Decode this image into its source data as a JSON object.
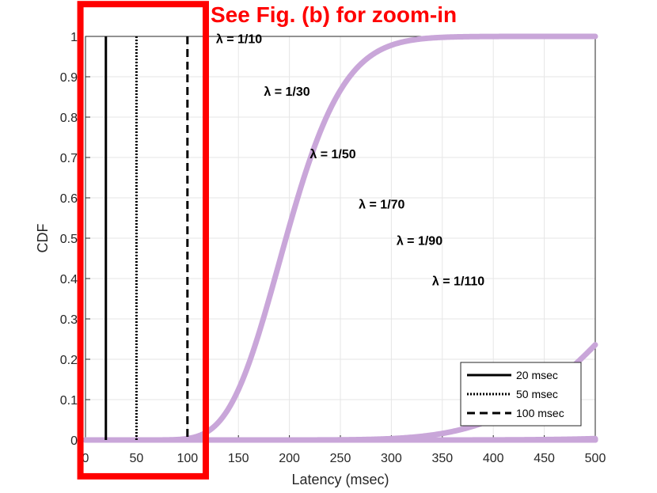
{
  "chart_data": {
    "type": "line",
    "title": "",
    "xlabel": "Latency (msec)",
    "ylabel": "CDF",
    "xlim": [
      0,
      500
    ],
    "ylim": [
      0,
      1
    ],
    "xticks": [
      0,
      50,
      100,
      150,
      200,
      250,
      300,
      350,
      400,
      450,
      500
    ],
    "yticks": [
      0,
      0.1,
      0.2,
      0.3,
      0.4,
      0.5,
      0.6,
      0.7,
      0.8,
      0.9,
      1
    ],
    "grid": true,
    "curve_color": "#C9A6D9",
    "curves": [
      {
        "label": "λ = 1/10",
        "lambda": 0.1,
        "shape": 20,
        "label_x": 128,
        "label_y": 0.995
      },
      {
        "label": "λ = 1/30",
        "lambda": 0.0333,
        "shape": 20,
        "label_x": 175,
        "label_y": 0.865
      },
      {
        "label": "λ = 1/50",
        "lambda": 0.02,
        "shape": 20,
        "label_x": 220,
        "label_y": 0.71
      },
      {
        "label": "λ = 1/70",
        "lambda": 0.01429,
        "shape": 20,
        "label_x": 268,
        "label_y": 0.585
      },
      {
        "label": "λ = 1/90",
        "lambda": 0.01111,
        "shape": 20,
        "label_x": 305,
        "label_y": 0.495
      },
      {
        "label": "λ = 1/110",
        "lambda": 0.00909,
        "shape": 20,
        "label_x": 340,
        "label_y": 0.395
      }
    ],
    "vlines": [
      {
        "name": "20 msec",
        "x": 20,
        "style": "solid"
      },
      {
        "name": "50 msec",
        "x": 50,
        "style": "dotted"
      },
      {
        "name": "100 msec",
        "x": 100,
        "style": "dashed"
      }
    ],
    "legend_placement": "bottom-right",
    "annotation": {
      "text": "See Fig. (b) for zoom-in",
      "color": "#FF0000",
      "box_x_range": [
        -5,
        118
      ],
      "box_y_range": [
        -0.09,
        1.08
      ]
    }
  }
}
